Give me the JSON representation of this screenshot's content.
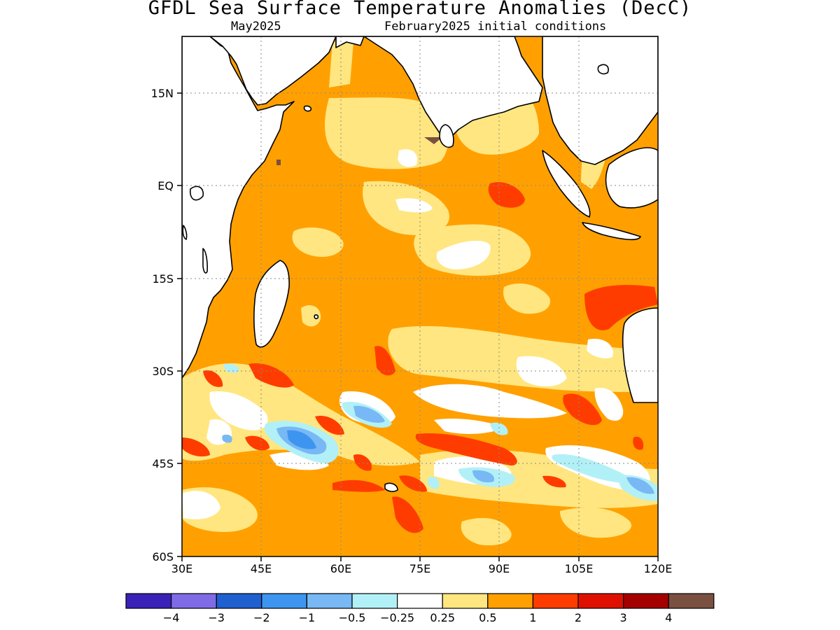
{
  "title": "GFDL Sea Surface Temperature Anomalies (DecC)",
  "subtitle_left": "May2025",
  "subtitle_right": "February2025 initial conditions",
  "lat_labels": [
    "15N",
    "EQ",
    "15S",
    "30S",
    "45S",
    "60S"
  ],
  "lon_labels": [
    "30E",
    "45E",
    "60E",
    "75E",
    "90E",
    "105E",
    "120E"
  ],
  "colorbar": {
    "colors": [
      "#3a22b8",
      "#7f6be6",
      "#1f5fcf",
      "#3d95f0",
      "#78b8f5",
      "#b2f0f7",
      "#ffffff",
      "#ffe680",
      "#ffa000",
      "#ff3c00",
      "#e01000",
      "#a50000",
      "#7a5040"
    ],
    "labels": [
      "−4",
      "−3",
      "−2",
      "−1",
      "−0.5",
      "−0.25",
      "0.25",
      "0.5",
      "1",
      "2",
      "3",
      "4"
    ]
  },
  "colors": {
    "background_anomaly": "#ffa000",
    "weak_positive": "#ffe680",
    "near_zero": "#ffffff",
    "strong_positive": "#ff3c00",
    "weak_negative": "#b2f0f7",
    "moderate_negative": "#78b8f5",
    "negative": "#3d95f0",
    "extreme_positive": "#7a5040",
    "land": "#ffffff"
  }
}
